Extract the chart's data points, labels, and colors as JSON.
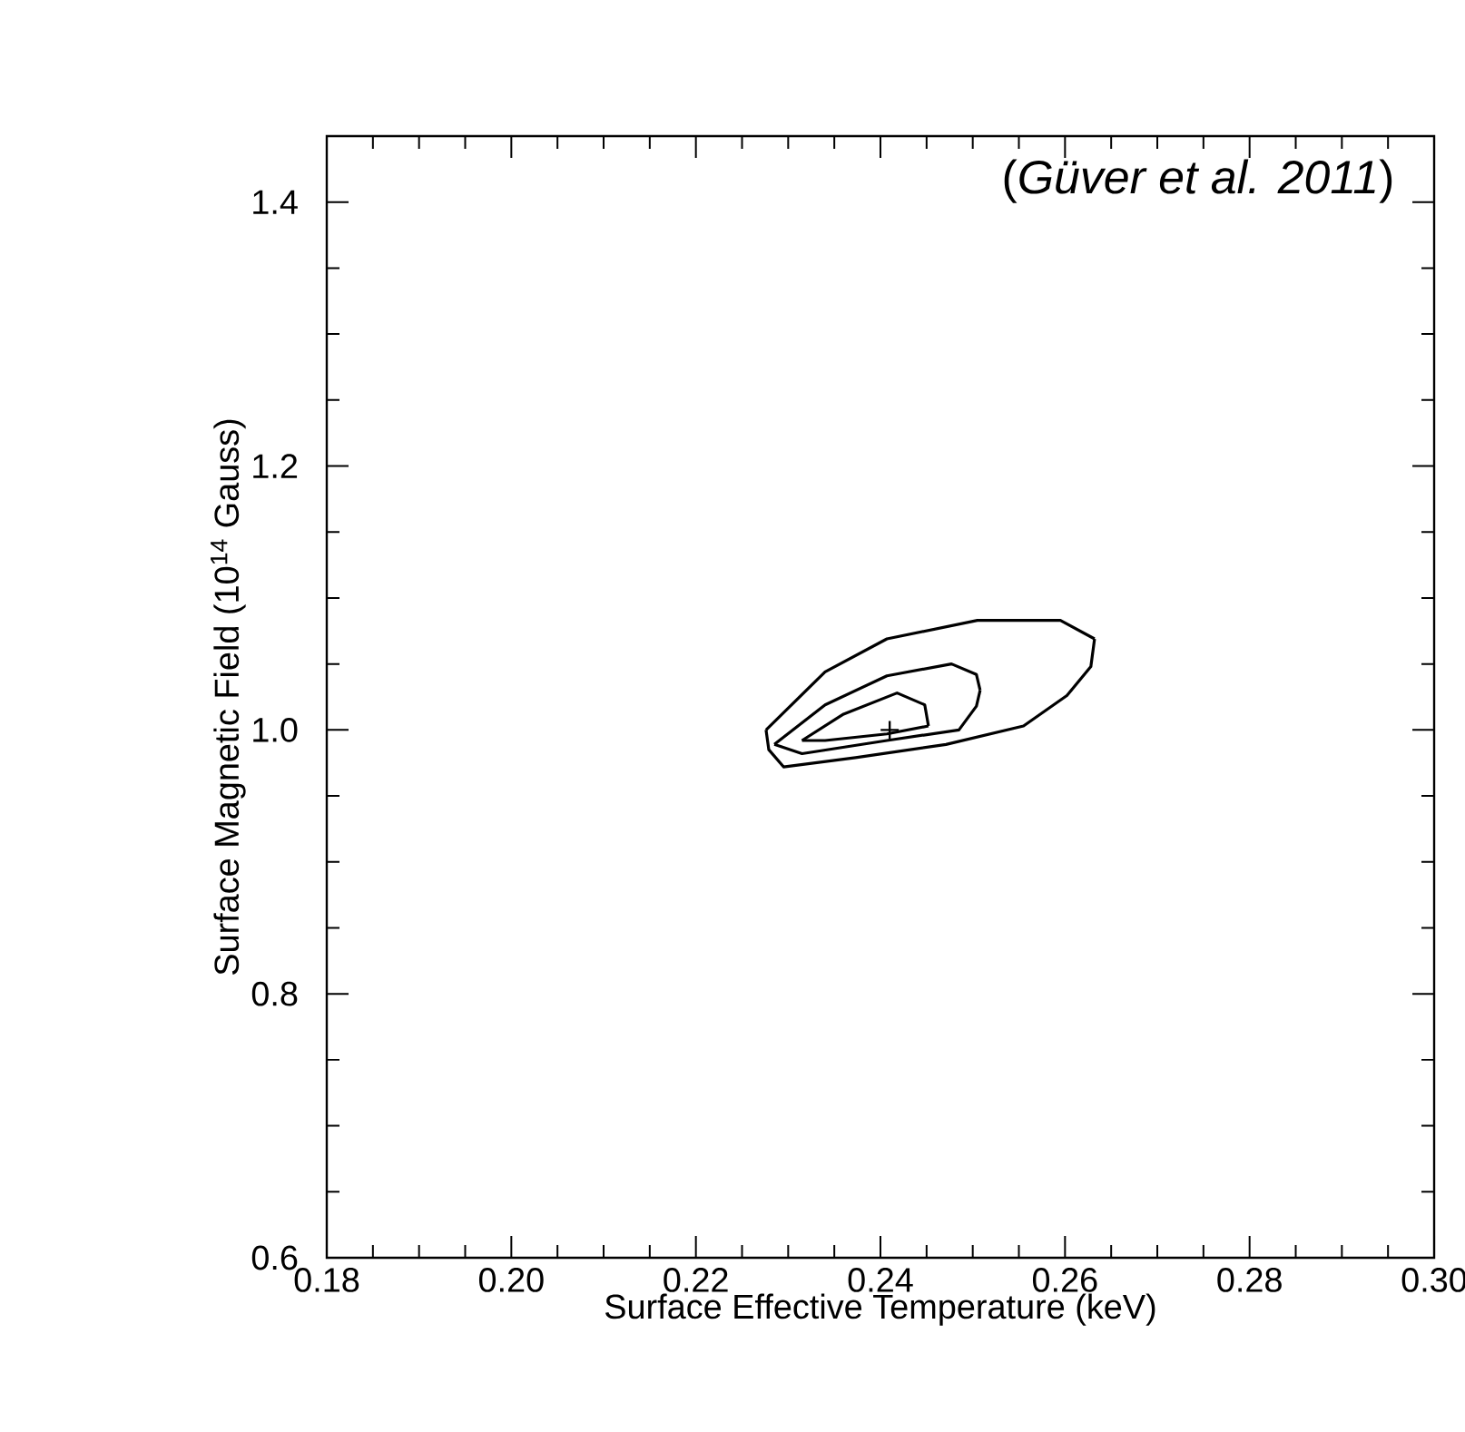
{
  "chart_data": {
    "type": "line",
    "xlabel": "Surface Effective Temperature (keV)",
    "ylabel": "Surface Magnetic Field (10$^{14}$ Gauss)",
    "annotations": [
      "(*Güver et al. 2011*)"
    ],
    "xlim": [
      0.18,
      0.3
    ],
    "ylim": [
      0.6,
      1.45
    ],
    "xticks": [
      0.18,
      {
        "value": 0.2,
        "label": "0.20"
      },
      0.22,
      0.24,
      0.26,
      0.28,
      {
        "value": 0.3,
        "label": "0.30"
      }
    ],
    "yticks": [
      0.6,
      0.8,
      {
        "value": 1.0,
        "label": "1.0"
      },
      1.2,
      1.4
    ],
    "line_style": "solid",
    "series": [
      {
        "color": "#000000",
        "x": [
          0.2276,
          0.234,
          0.2407,
          0.2505,
          0.2595,
          0.2632
        ],
        "values": [
          1.0,
          1.044,
          1.069,
          1.083,
          1.083,
          1.069
        ]
      },
      {
        "color": "#000000",
        "x": [
          0.2276,
          0.2279,
          0.2295,
          0.2373,
          0.2471,
          0.2555,
          0.2602,
          0.2628,
          0.2632
        ],
        "values": [
          1.0,
          0.985,
          0.972,
          0.979,
          0.989,
          1.003,
          1.026,
          1.048,
          1.069
        ]
      },
      {
        "color": "#000000",
        "x": [
          0.2285,
          0.234,
          0.2407,
          0.2477,
          0.2504,
          0.2508
        ],
        "values": [
          0.989,
          1.019,
          1.041,
          1.05,
          1.042,
          1.03
        ]
      },
      {
        "color": "#000000",
        "x": [
          0.2285,
          0.2315,
          0.2407,
          0.2485,
          0.2504,
          0.2508
        ],
        "values": [
          0.989,
          0.982,
          0.992,
          1.0,
          1.018,
          1.03
        ]
      },
      {
        "color": "#000000",
        "x": [
          0.2315,
          0.236,
          0.2418,
          0.2448,
          0.2452
        ],
        "values": [
          0.992,
          1.012,
          1.028,
          1.019,
          1.003
        ]
      },
      {
        "color": "#000000",
        "x": [
          0.2315,
          0.234,
          0.2407,
          0.2452
        ],
        "values": [
          0.992,
          0.992,
          0.997,
          1.003
        ]
      },
      {
        "type": "scatter",
        "color": "#000000",
        "marker": "cross",
        "x": [
          0.241
        ],
        "values": [
          1.0
        ]
      }
    ]
  }
}
